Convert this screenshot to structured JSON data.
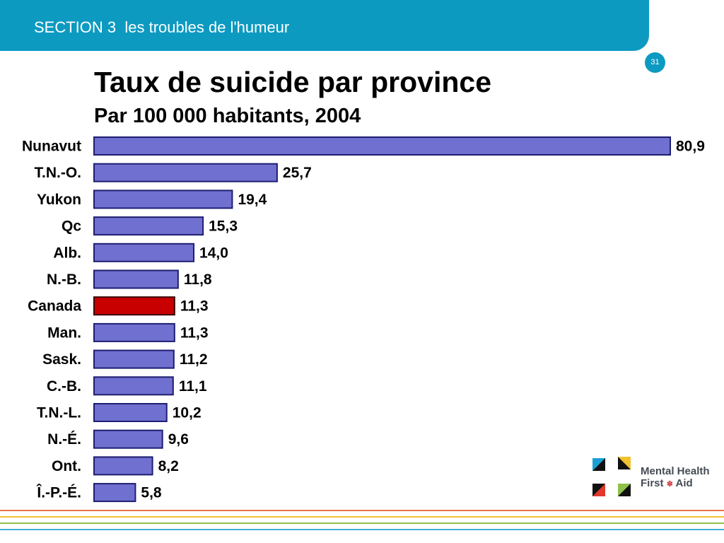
{
  "header": {
    "section": "SECTION 3  les troubles de l'humeur"
  },
  "page_number": "31",
  "chart_data": {
    "type": "bar",
    "orientation": "horizontal",
    "title": "Taux de suicide par province",
    "subtitle": "Par 100 000 habitants, 2004",
    "categories": [
      "Nunavut",
      "T.N.-O.",
      "Yukon",
      "Qc",
      "Alb.",
      "N.-B.",
      "Canada",
      "Man.",
      "Sask.",
      "C.-B.",
      "T.N.-L.",
      "N.-É.",
      "Ont.",
      "Î.-P.-É."
    ],
    "values": [
      80.9,
      25.7,
      19.4,
      15.3,
      14.0,
      11.8,
      11.3,
      11.3,
      11.2,
      11.1,
      10.2,
      9.6,
      8.2,
      5.8
    ],
    "value_labels": [
      "80,9",
      "25,7",
      "19,4",
      "15,3",
      "14,0",
      "11,8",
      "11,3",
      "11,3",
      "11,2",
      "11,1",
      "10,2",
      "9,6",
      "8,2",
      "5,8"
    ],
    "highlight": "Canada",
    "colors": {
      "bar": "#7070d0",
      "bar_border": "#1e1e72",
      "highlight": "#c80000",
      "highlight_border": "#3a0000"
    },
    "grid": false,
    "legend": "none"
  },
  "logo": {
    "line1": "Mental Health",
    "line2_a": "First",
    "line2_b": "Aid",
    "maple_icon": "maple-leaf-icon"
  },
  "stripe_colors": [
    "#e8734a",
    "#f2c12e",
    "#8fc14a",
    "#43b0d6"
  ]
}
